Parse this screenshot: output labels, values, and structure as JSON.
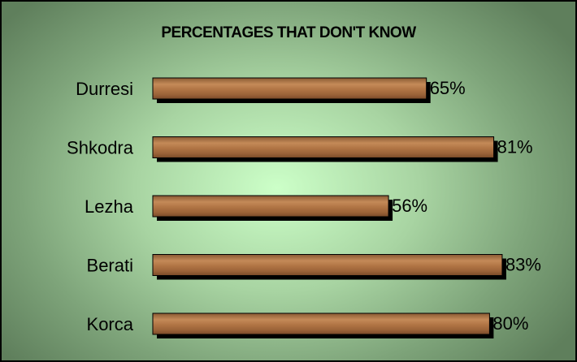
{
  "chart_data": {
    "type": "bar",
    "orientation": "horizontal",
    "title": "PERCENTAGES THAT DON'T KNOW",
    "categories": [
      "Durresi",
      "Shkodra",
      "Lezha",
      "Berati",
      "Korca"
    ],
    "values": [
      65,
      81,
      56,
      83,
      80
    ],
    "value_labels": [
      "65%",
      "81%",
      "56%",
      "83%",
      "80%"
    ],
    "xlabel": "",
    "ylabel": "",
    "xlim": [
      0,
      100
    ],
    "grid": false,
    "legend": "none"
  },
  "colors": {
    "bar_fill": "#b07444",
    "bar_edge": "#000000",
    "background_center": "#ccffc8",
    "background_edge": "#5f7f5c"
  }
}
